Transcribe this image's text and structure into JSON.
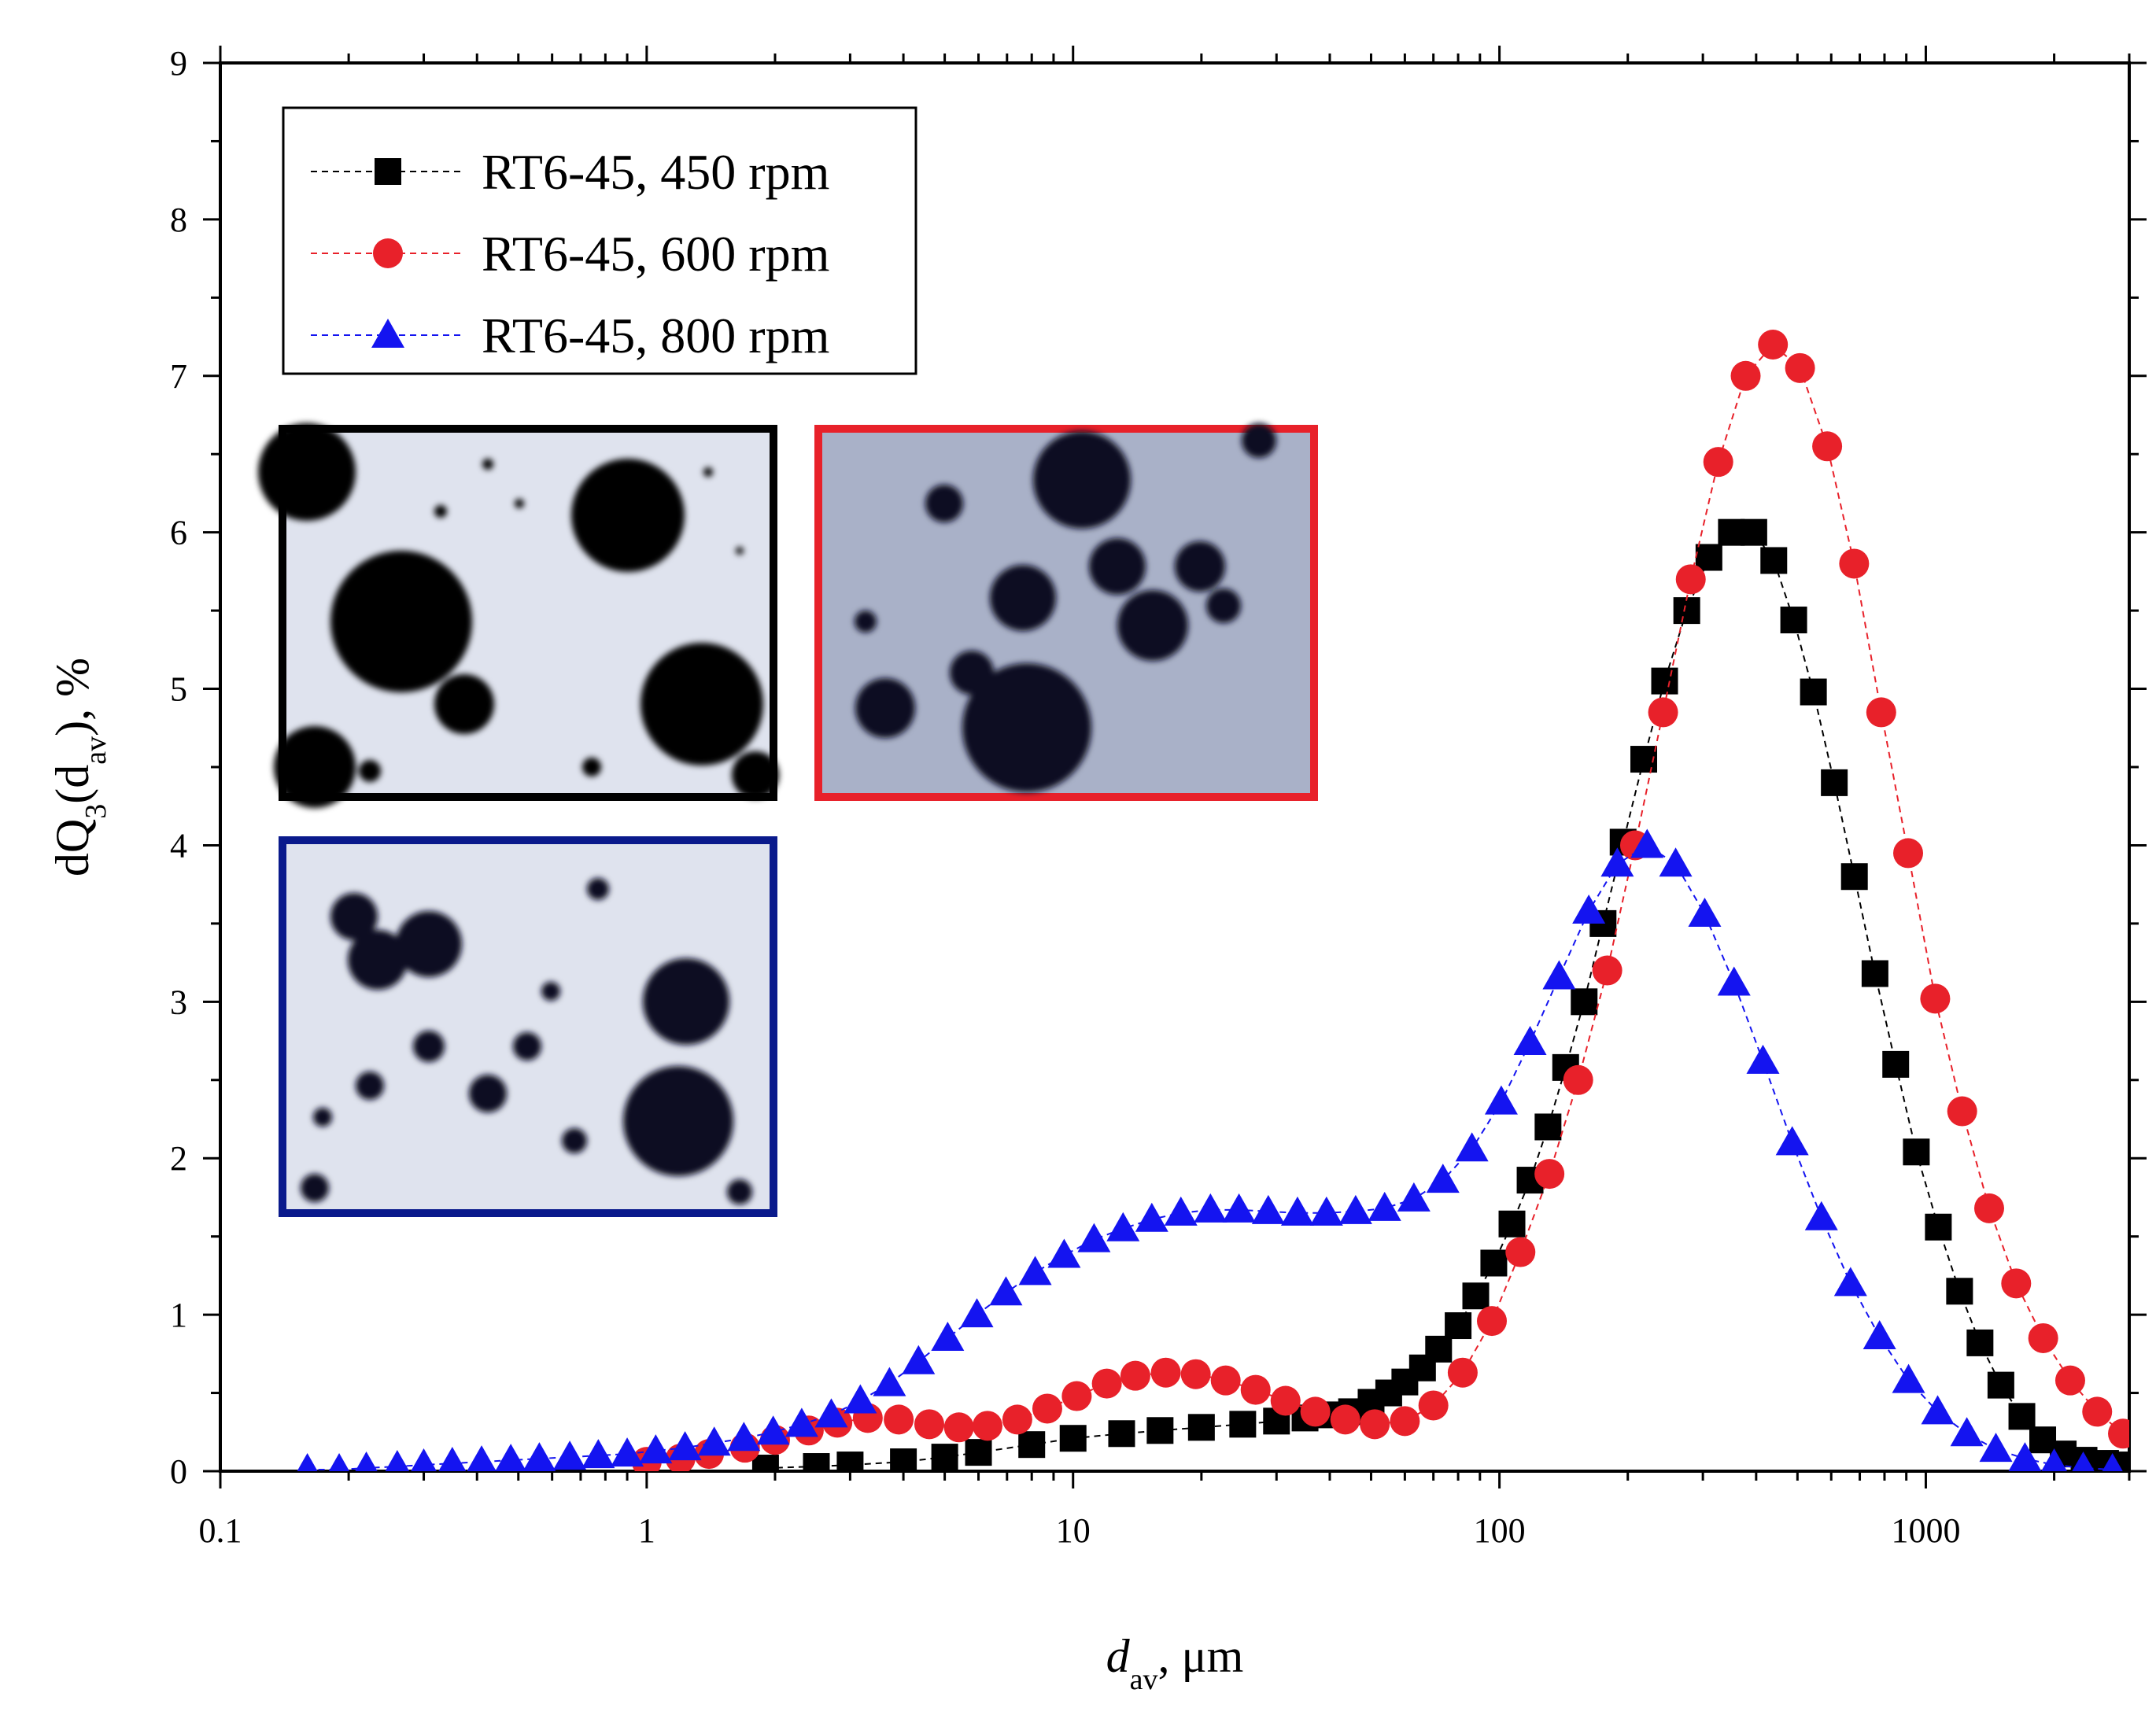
{
  "chart_data": {
    "type": "scatter",
    "title": "",
    "xscale": "log",
    "xlim": [
      0.1,
      3000
    ],
    "ylim": [
      0,
      9
    ],
    "xticks": [
      0.1,
      1,
      10,
      100,
      1000
    ],
    "xtick_labels": [
      "0.1",
      "1",
      "10",
      "100",
      "1000"
    ],
    "yticks": [
      0,
      1,
      2,
      3,
      4,
      5,
      6,
      7,
      8,
      9
    ],
    "ytick_labels": [
      "0",
      "1",
      "2",
      "3",
      "4",
      "5",
      "6",
      "7",
      "8",
      "9"
    ],
    "xlabel": {
      "main": "d",
      "sub": "av",
      "rest": ", μm"
    },
    "ylabel": {
      "a": "dQ",
      "sub1": "3",
      "b": "(d",
      "sub2": "av",
      "c": "), %"
    },
    "legend_position": "top-left",
    "insets": [
      {
        "name": "inset-450-rpm",
        "frame_color": "#000000"
      },
      {
        "name": "inset-600-rpm",
        "frame_color": "#e8212a"
      },
      {
        "name": "inset-800-rpm",
        "frame_color": "#0a1a8c"
      }
    ],
    "series": [
      {
        "name": "RT6-45, 450 rpm",
        "marker": "square",
        "color": "#000000",
        "x": [
          1.9,
          2.5,
          3,
          4,
          5,
          6,
          8,
          10,
          13,
          16,
          20,
          25,
          30,
          35,
          40,
          45,
          50,
          55,
          60,
          66,
          72,
          80,
          88,
          97,
          107,
          118,
          130,
          143,
          158,
          175,
          195,
          218,
          244,
          275,
          310,
          350,
          395,
          440,
          490,
          545,
          610,
          680,
          760,
          850,
          950,
          1070,
          1200,
          1340,
          1500,
          1680,
          1880,
          2100,
          2350,
          2640,
          2900
        ],
        "y": [
          0.02,
          0.03,
          0.04,
          0.06,
          0.09,
          0.12,
          0.17,
          0.21,
          0.24,
          0.26,
          0.28,
          0.3,
          0.32,
          0.34,
          0.36,
          0.38,
          0.44,
          0.5,
          0.57,
          0.66,
          0.78,
          0.93,
          1.12,
          1.33,
          1.58,
          1.86,
          2.2,
          2.58,
          3.0,
          3.5,
          4.02,
          4.55,
          5.05,
          5.5,
          5.84,
          6.0,
          6.0,
          5.82,
          5.44,
          4.98,
          4.4,
          3.8,
          3.18,
          2.6,
          2.04,
          1.56,
          1.15,
          0.82,
          0.55,
          0.35,
          0.2,
          0.11,
          0.07,
          0.05,
          0.04
        ]
      },
      {
        "name": "RT6-45, 600 rpm",
        "marker": "circle",
        "color": "#e8212a",
        "x": [
          1,
          1.2,
          1.4,
          1.7,
          2.0,
          2.4,
          2.8,
          3.3,
          3.9,
          4.6,
          5.4,
          6.3,
          7.4,
          8.7,
          10.2,
          12,
          14,
          16.5,
          19.4,
          22.8,
          26.8,
          31.5,
          37,
          43.5,
          51,
          60,
          70,
          82,
          96,
          112,
          131,
          153,
          179,
          208,
          242,
          281,
          326,
          378,
          438,
          507,
          587,
          679,
          786,
          909,
          1052,
          1217,
          1408,
          1629,
          1885,
          2181,
          2523,
          2900
        ],
        "y": [
          0.06,
          0.08,
          0.11,
          0.15,
          0.2,
          0.26,
          0.31,
          0.34,
          0.33,
          0.3,
          0.28,
          0.29,
          0.33,
          0.4,
          0.48,
          0.56,
          0.61,
          0.63,
          0.62,
          0.58,
          0.52,
          0.45,
          0.38,
          0.33,
          0.3,
          0.32,
          0.42,
          0.63,
          0.96,
          1.4,
          1.9,
          2.5,
          3.2,
          4.0,
          4.85,
          5.7,
          6.45,
          7.0,
          7.2,
          7.05,
          6.55,
          5.8,
          4.85,
          3.95,
          3.02,
          2.3,
          1.68,
          1.2,
          0.85,
          0.58,
          0.38,
          0.24
        ]
      },
      {
        "name": "RT6-45, 800 rpm",
        "marker": "triangle",
        "color": "#1414f0",
        "x": [
          0.16,
          0.19,
          0.22,
          0.26,
          0.3,
          0.35,
          0.41,
          0.48,
          0.56,
          0.66,
          0.77,
          0.9,
          1.05,
          1.23,
          1.44,
          1.69,
          1.98,
          2.31,
          2.71,
          3.17,
          3.71,
          4.34,
          5.08,
          5.95,
          6.96,
          8.15,
          9.53,
          11.2,
          13.1,
          15.3,
          17.9,
          21.0,
          24.5,
          28.7,
          33.6,
          39.3,
          46.0,
          53.8,
          63.0,
          73.7,
          86.2,
          101,
          118,
          138,
          162,
          189,
          222,
          259,
          303,
          355,
          415,
          486,
          569,
          666,
          779,
          911,
          1066,
          1248,
          1460,
          1708,
          2000,
          2340,
          2740
        ],
        "y": [
          0.01,
          0.01,
          0.02,
          0.03,
          0.04,
          0.05,
          0.06,
          0.07,
          0.08,
          0.09,
          0.1,
          0.11,
          0.13,
          0.15,
          0.18,
          0.21,
          0.25,
          0.3,
          0.36,
          0.45,
          0.56,
          0.7,
          0.85,
          1.0,
          1.14,
          1.27,
          1.38,
          1.48,
          1.55,
          1.61,
          1.65,
          1.67,
          1.67,
          1.66,
          1.65,
          1.65,
          1.66,
          1.68,
          1.74,
          1.86,
          2.06,
          2.36,
          2.74,
          3.16,
          3.58,
          3.88,
          4.0,
          3.88,
          3.56,
          3.12,
          2.62,
          2.1,
          1.62,
          1.2,
          0.86,
          0.58,
          0.38,
          0.24,
          0.14,
          0.08,
          0.04,
          0.02,
          0.01
        ]
      }
    ]
  }
}
